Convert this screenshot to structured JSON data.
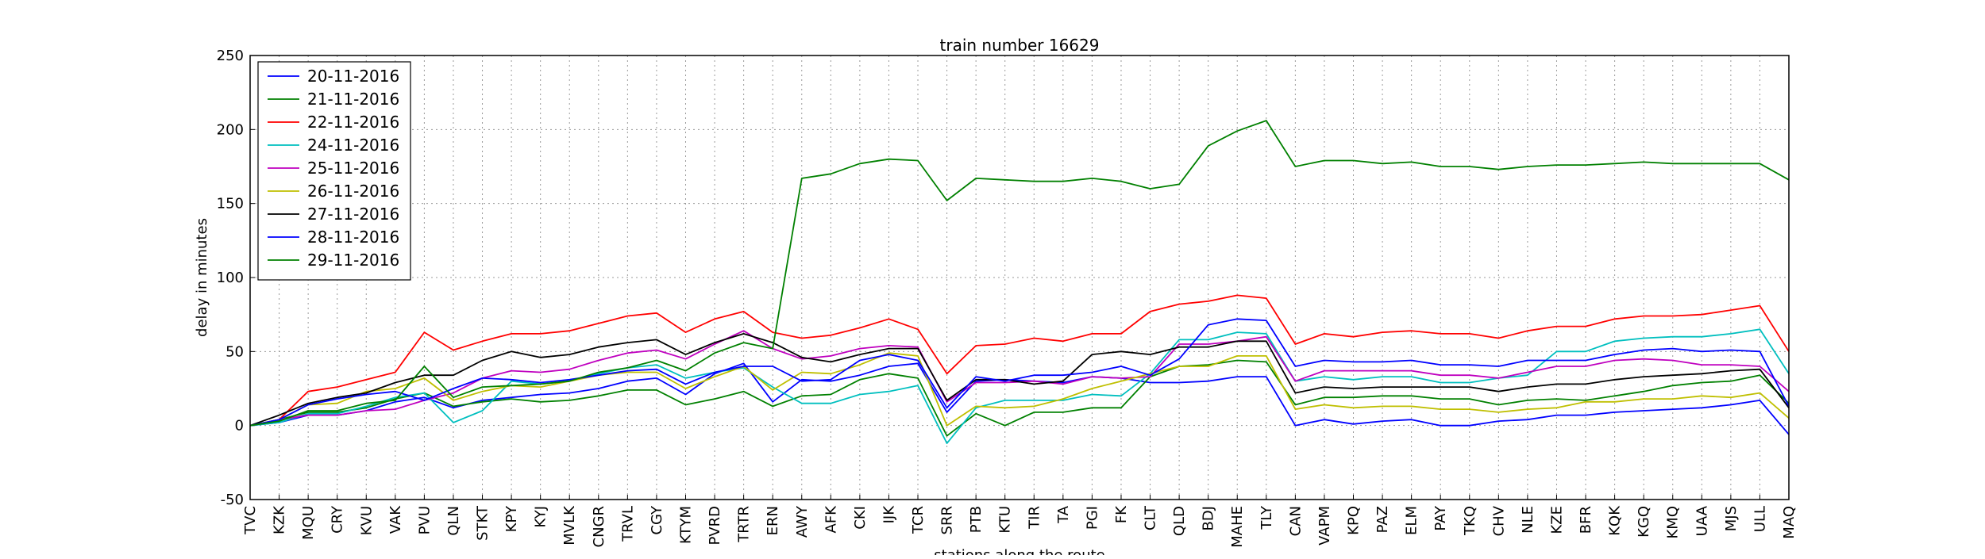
{
  "chart_data": {
    "type": "line",
    "title": "train number 16629",
    "xlabel": "stations along the route",
    "ylabel": "delay in minutes",
    "ylim": [
      -50,
      250
    ],
    "yticks": [
      -50,
      0,
      50,
      100,
      150,
      200,
      250
    ],
    "grid": true,
    "legend_position": "top-left",
    "categories": [
      "TVC",
      "KZK",
      "MQU",
      "CRY",
      "KVU",
      "VAK",
      "PVU",
      "QLN",
      "STKT",
      "KPY",
      "KYJ",
      "MVLK",
      "CNGR",
      "TRVL",
      "CGY",
      "KTYM",
      "PVRD",
      "TRTR",
      "ERN",
      "AWY",
      "AFK",
      "CKI",
      "IJK",
      "TCR",
      "SRR",
      "PTB",
      "KTU",
      "TIR",
      "TA",
      "PGI",
      "FK",
      "CLT",
      "QLD",
      "BDJ",
      "MAHE",
      "TLY",
      "CAN",
      "VAPM",
      "KPQ",
      "PAZ",
      "ELM",
      "PAY",
      "TKQ",
      "CHV",
      "NLE",
      "KZE",
      "BFR",
      "KQK",
      "KGQ",
      "KMQ",
      "UAA",
      "MJS",
      "ULL",
      "MAQ"
    ],
    "series": [
      {
        "name": "20-11-2016",
        "color": "#0000ff",
        "values": [
          0,
          2,
          7,
          7,
          10,
          16,
          19,
          12,
          17,
          19,
          21,
          22,
          25,
          30,
          32,
          21,
          35,
          42,
          16,
          31,
          30,
          34,
          40,
          42,
          9,
          30,
          31,
          30,
          29,
          33,
          32,
          29,
          29,
          30,
          33,
          33,
          0,
          4,
          1,
          3,
          4,
          0,
          0,
          3,
          4,
          7,
          7,
          9,
          10,
          11,
          12,
          14,
          17,
          -6
        ]
      },
      {
        "name": "21-11-2016",
        "color": "#008000",
        "values": [
          0,
          4,
          9,
          9,
          12,
          18,
          22,
          13,
          16,
          18,
          16,
          17,
          20,
          24,
          24,
          14,
          18,
          23,
          13,
          20,
          21,
          31,
          35,
          32,
          -7,
          8,
          0,
          9,
          9,
          12,
          12,
          33,
          40,
          41,
          44,
          43,
          14,
          19,
          19,
          20,
          20,
          18,
          18,
          14,
          17,
          18,
          17,
          20,
          23,
          27,
          29,
          30,
          34,
          15
        ]
      },
      {
        "name": "22-11-2016",
        "color": "#ff0000",
        "values": [
          0,
          4,
          23,
          26,
          31,
          36,
          63,
          51,
          57,
          62,
          62,
          64,
          69,
          74,
          76,
          63,
          72,
          77,
          63,
          59,
          61,
          66,
          72,
          65,
          35,
          54,
          55,
          59,
          57,
          62,
          62,
          77,
          82,
          84,
          88,
          86,
          55,
          62,
          60,
          63,
          64,
          62,
          62,
          59,
          64,
          67,
          67,
          72,
          74,
          74,
          75,
          78,
          81,
          50
        ]
      },
      {
        "name": "24-11-2016",
        "color": "#00bfbf",
        "values": [
          0,
          2,
          8,
          8,
          13,
          19,
          22,
          2,
          10,
          30,
          28,
          30,
          35,
          39,
          41,
          32,
          36,
          39,
          26,
          15,
          15,
          21,
          23,
          27,
          -12,
          12,
          17,
          17,
          17,
          21,
          20,
          35,
          58,
          58,
          63,
          62,
          30,
          33,
          31,
          33,
          33,
          29,
          29,
          32,
          34,
          50,
          50,
          57,
          59,
          60,
          60,
          62,
          65,
          35
        ]
      },
      {
        "name": "25-11-2016",
        "color": "#bf00bf",
        "values": [
          0,
          4,
          7,
          7,
          10,
          11,
          17,
          22,
          32,
          37,
          36,
          38,
          44,
          49,
          51,
          45,
          55,
          64,
          52,
          45,
          47,
          52,
          54,
          53,
          16,
          29,
          29,
          30,
          28,
          33,
          32,
          33,
          55,
          55,
          57,
          60,
          30,
          37,
          37,
          37,
          37,
          34,
          34,
          32,
          36,
          40,
          40,
          44,
          45,
          44,
          41,
          41,
          40,
          23
        ]
      },
      {
        "name": "26-11-2016",
        "color": "#bfbf00",
        "values": [
          0,
          4,
          14,
          15,
          23,
          25,
          32,
          17,
          23,
          27,
          26,
          30,
          34,
          36,
          36,
          25,
          33,
          40,
          24,
          36,
          35,
          41,
          49,
          47,
          0,
          13,
          12,
          13,
          18,
          25,
          30,
          35,
          40,
          40,
          47,
          47,
          11,
          14,
          12,
          13,
          13,
          11,
          11,
          9,
          11,
          12,
          16,
          16,
          18,
          18,
          20,
          19,
          22,
          5
        ]
      },
      {
        "name": "27-11-2016",
        "color": "#000000",
        "values": [
          0,
          7,
          15,
          19,
          22,
          29,
          34,
          34,
          44,
          50,
          46,
          48,
          53,
          56,
          58,
          48,
          56,
          62,
          56,
          46,
          43,
          48,
          52,
          52,
          17,
          31,
          31,
          28,
          30,
          48,
          50,
          48,
          53,
          53,
          57,
          57,
          22,
          26,
          25,
          26,
          26,
          26,
          26,
          23,
          26,
          28,
          28,
          31,
          33,
          34,
          35,
          37,
          38,
          12
        ]
      },
      {
        "name": "28-11-2016",
        "color": "#0000ff",
        "values": [
          0,
          4,
          14,
          18,
          21,
          23,
          17,
          25,
          32,
          31,
          29,
          31,
          34,
          37,
          38,
          28,
          36,
          40,
          40,
          30,
          31,
          44,
          48,
          44,
          12,
          33,
          30,
          34,
          34,
          36,
          40,
          34,
          45,
          68,
          72,
          71,
          40,
          44,
          43,
          43,
          44,
          41,
          41,
          40,
          44,
          44,
          44,
          48,
          51,
          52,
          50,
          51,
          50,
          13
        ]
      },
      {
        "name": "29-11-2016",
        "color": "#008000",
        "values": [
          0,
          3,
          10,
          10,
          15,
          17,
          40,
          19,
          26,
          27,
          28,
          30,
          36,
          39,
          44,
          37,
          49,
          56,
          52,
          167,
          170,
          177,
          180,
          179,
          152,
          167,
          166,
          165,
          165,
          167,
          165,
          160,
          163,
          189,
          199,
          206,
          175,
          179,
          179,
          177,
          178,
          175,
          175,
          173,
          175,
          176,
          176,
          177,
          178,
          177,
          177,
          177,
          177,
          166
        ]
      }
    ]
  }
}
